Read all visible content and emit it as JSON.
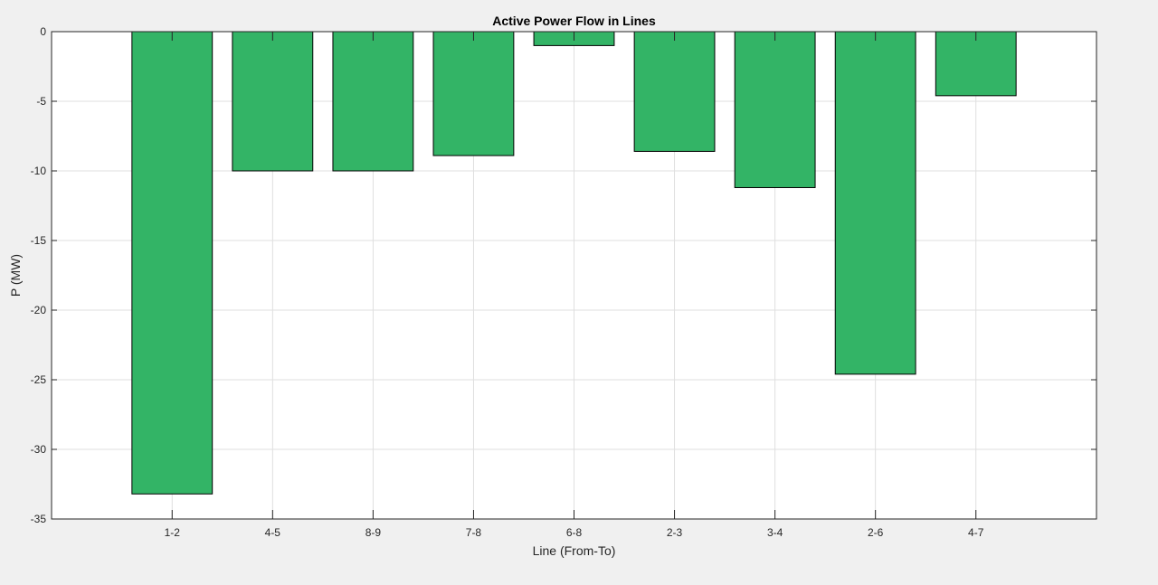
{
  "chart_data": {
    "type": "bar",
    "title": "Active Power Flow in Lines",
    "xlabel": "Line (From-To)",
    "ylabel": "P (MW)",
    "categories": [
      "1-2",
      "4-5",
      "8-9",
      "7-8",
      "6-8",
      "2-3",
      "3-4",
      "2-6",
      "4-7"
    ],
    "values": [
      -33.2,
      -10.0,
      -10.0,
      -8.9,
      -1.0,
      -8.6,
      -11.2,
      -24.6,
      -4.6
    ],
    "ylim": [
      -35,
      0
    ],
    "yticks": [
      0,
      -5,
      -10,
      -15,
      -20,
      -25,
      -30,
      -35
    ],
    "xlim": [
      -0.2,
      10.2
    ],
    "grid": true,
    "bar_color": "#33b466",
    "bar_edge_color": "#000000",
    "axes_background": "#ffffff",
    "figure_background": "#f0f0f0"
  }
}
